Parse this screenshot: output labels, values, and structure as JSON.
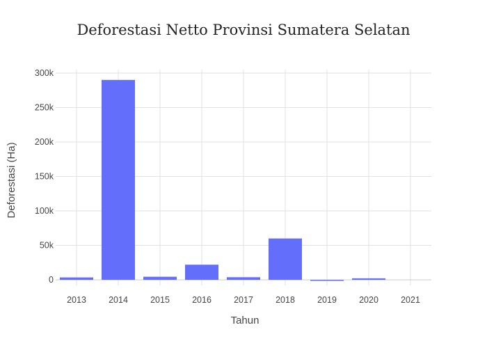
{
  "chart_data": {
    "type": "bar",
    "title": "Deforestasi Netto Provinsi Sumatera Selatan",
    "xlabel": "Tahun",
    "ylabel": "Deforestasi (Ha)",
    "categories": [
      "2013",
      "2014",
      "2015",
      "2016",
      "2017",
      "2018",
      "2019",
      "2020",
      "2021"
    ],
    "values": [
      3500,
      290000,
      4500,
      22000,
      3800,
      60000,
      -1500,
      2200,
      0
    ],
    "ylim": [
      -8000,
      305000
    ],
    "yticks": [
      0,
      50000,
      100000,
      150000,
      200000,
      250000,
      300000
    ],
    "ytick_labels": [
      "0",
      "50k",
      "100k",
      "150k",
      "200k",
      "250k",
      "300k"
    ],
    "grid": true,
    "bar_color": "#636efa"
  }
}
